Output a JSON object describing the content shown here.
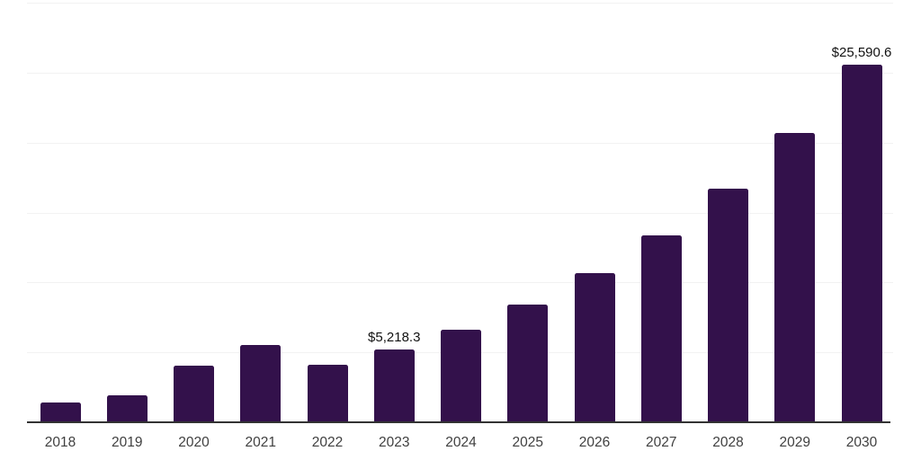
{
  "colors": {
    "background": "#ffffff",
    "bar": "#33114b",
    "gridline": "#f2f2f2",
    "axis_line": "#333333",
    "tick_label": "#404040",
    "data_label": "#111111"
  },
  "chart_data": {
    "type": "bar",
    "title": "",
    "xlabel": "",
    "ylabel": "",
    "categories": [
      "2018",
      "2019",
      "2020",
      "2021",
      "2022",
      "2023",
      "2024",
      "2025",
      "2026",
      "2027",
      "2028",
      "2029",
      "2030"
    ],
    "values": [
      1410,
      1950,
      4080,
      5540,
      4110,
      5218.3,
      6590,
      8420,
      10660,
      13360,
      16700,
      20690,
      25590.6
    ],
    "data_labels": [
      "",
      "",
      "",
      "",
      "",
      "$5,218.3",
      "",
      "",
      "",
      "",
      "",
      "",
      "$25,590.6"
    ],
    "ylim": [
      0,
      30000
    ],
    "gridline_interval": 5000,
    "grid": true,
    "y_axis_labels_visible": false,
    "legend_position": "none",
    "bar_color": "#33114b",
    "currency_prefix": "$"
  }
}
